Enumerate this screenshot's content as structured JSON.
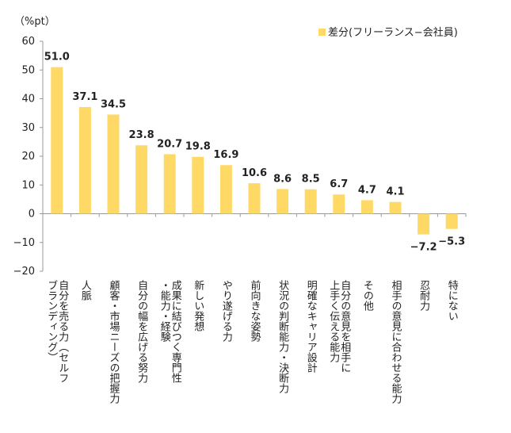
{
  "chart_data": {
    "type": "bar",
    "title": "",
    "unit_label": "（%pt）",
    "xlabel": "",
    "ylabel": "",
    "ylim": [
      -20,
      60
    ],
    "yticks": [
      60,
      50,
      40,
      30,
      20,
      10,
      0,
      -10,
      -20
    ],
    "ytick_labels": [
      "60",
      "50",
      "40",
      "30",
      "20",
      "10",
      "0",
      "−10",
      "−20"
    ],
    "grid": false,
    "legend_position": "top-right",
    "series": [
      {
        "name": "差分(フリーランス−会社員)",
        "color": "#ffd966",
        "values": [
          51.0,
          37.1,
          34.5,
          23.8,
          20.7,
          19.8,
          16.9,
          10.6,
          8.6,
          8.5,
          6.7,
          4.7,
          4.1,
          -7.2,
          -5.3
        ],
        "value_labels": [
          "51.0",
          "37.1",
          "34.5",
          "23.8",
          "20.7",
          "19.8",
          "16.9",
          "10.6",
          "8.6",
          "8.5",
          "6.7",
          "4.7",
          "4.1",
          "−7.2",
          "−5.3"
        ]
      }
    ],
    "categories": [
      "自分を売る力（セルフブランディング）",
      "人脈",
      "顧客・市場ニーズの把握力",
      "自分の幅を広げる努力",
      "成果に結びつく専門性・能力・経験",
      "新しい発想",
      "やり遂げる力",
      "前向きな姿勢",
      "状況の判断能力・決断力",
      "明確なキャリア設計",
      "自分の意見を相手に上手く伝える能力",
      "その他",
      "相手の意見に合わせる能力",
      "忍耐力",
      "特にない"
    ],
    "category_lines": [
      [
        "自分を売る力（セルフ",
        "ブランディング）"
      ],
      [
        "人脈"
      ],
      [
        "顧客・市場ニーズの把握力"
      ],
      [
        "自分の幅を広げる努力"
      ],
      [
        "成果に結びつく専門性",
        "・能力・経験"
      ],
      [
        "新しい発想"
      ],
      [
        "やり遂げる力"
      ],
      [
        "前向きな姿勢"
      ],
      [
        "状況の判断能力・決断力"
      ],
      [
        "明確なキャリア設計"
      ],
      [
        "自分の意見を相手に",
        "上手く伝える能力"
      ],
      [
        "その他"
      ],
      [
        "相手の意見に合わせる能力"
      ],
      [
        "忍耐力"
      ],
      [
        "特にない"
      ]
    ]
  }
}
